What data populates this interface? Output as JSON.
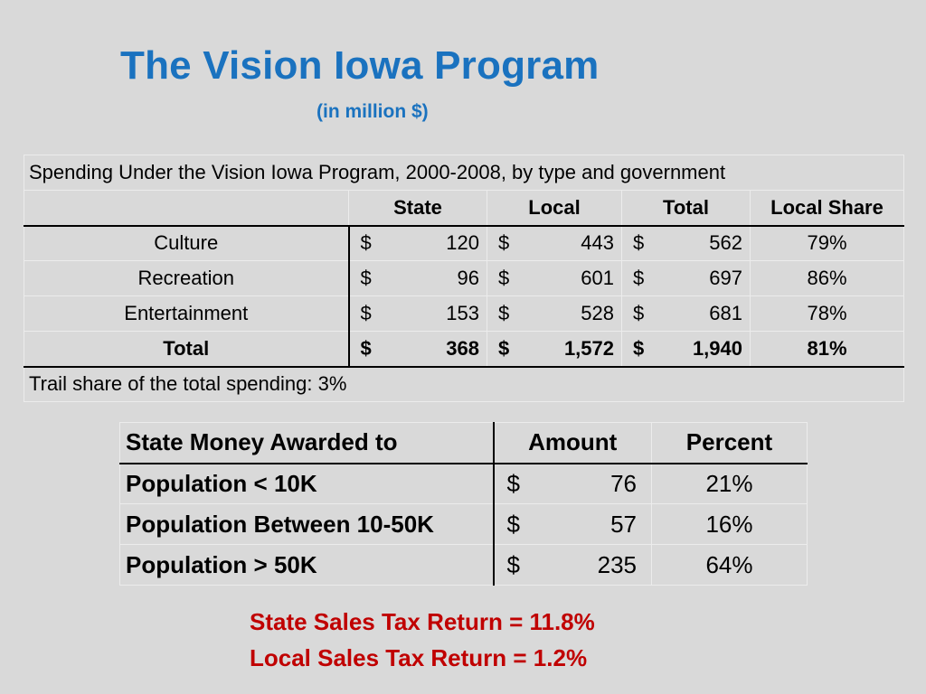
{
  "title": "The Vision Iowa Program",
  "subtitle": "(in million $)",
  "spending_table": {
    "caption": "Spending Under the Vision Iowa Program, 2000-2008, by type and government",
    "headers": [
      "State",
      "Local",
      "Total",
      "Local Share"
    ],
    "currency_symbol": "$",
    "rows": [
      {
        "label": "Culture",
        "state": "120",
        "local": "443",
        "total": "562",
        "local_share": "79%"
      },
      {
        "label": "Recreation",
        "state": "96",
        "local": "601",
        "total": "697",
        "local_share": "86%"
      },
      {
        "label": "Entertainment",
        "state": "153",
        "local": "528",
        "total": "681",
        "local_share": "78%"
      },
      {
        "label": "Total",
        "state": "368",
        "local": "1,572",
        "total": "1,940",
        "local_share": "81%"
      }
    ],
    "footnote": "Trail share of the total spending:  3%"
  },
  "awards_table": {
    "headers": [
      "State Money Awarded to",
      "Amount",
      "Percent"
    ],
    "currency_symbol": "$",
    "rows": [
      {
        "label": "Population < 10K",
        "amount": "76",
        "percent": "21%"
      },
      {
        "label": "Population Between 10-50K",
        "amount": "57",
        "percent": "16%"
      },
      {
        "label": "Population > 50K",
        "amount": "235",
        "percent": "64%"
      }
    ]
  },
  "notes": {
    "state_return": "State Sales Tax Return = 11.8%",
    "local_return": "Local Sales Tax Return = 1.2%"
  }
}
